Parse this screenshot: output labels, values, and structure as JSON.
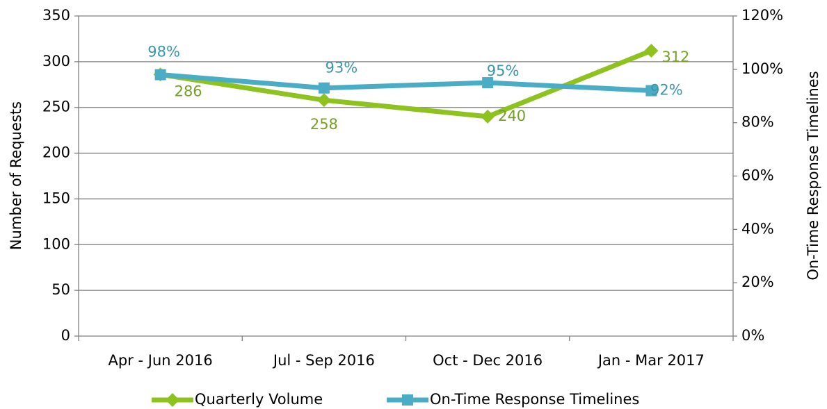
{
  "chart_data": {
    "type": "line",
    "categories": [
      "Apr - Jun 2016",
      "Jul - Sep 2016",
      "Oct - Dec 2016",
      "Jan - Mar 2017"
    ],
    "ylabel": "Number of Requests",
    "y2label": "On-Time Response Timelines",
    "ylim": [
      0,
      350
    ],
    "yticks": [
      0,
      50,
      100,
      150,
      200,
      250,
      300,
      350
    ],
    "y2lim": [
      0,
      120
    ],
    "y2ticks": [
      {
        "value": 0,
        "label": "0%"
      },
      {
        "value": 20,
        "label": "20%"
      },
      {
        "value": 40,
        "label": "40%"
      },
      {
        "value": 60,
        "label": "60%"
      },
      {
        "value": 80,
        "label": "80%"
      },
      {
        "value": 100,
        "label": "100%"
      },
      {
        "value": 120,
        "label": "120%"
      }
    ],
    "grid": true,
    "legend": "bottom",
    "series": [
      {
        "name": "Quarterly Volume",
        "color": "#8dc21f",
        "marker": "diamond",
        "values": [
          286,
          258,
          240,
          312
        ]
      },
      {
        "name": "On-Time Response Timelines",
        "color": "#4bacc6",
        "marker": "square",
        "axis": "y2",
        "values": [
          98,
          93,
          95,
          92
        ],
        "value_labels": [
          "98%",
          "93%",
          "95%",
          "92%"
        ]
      }
    ]
  }
}
